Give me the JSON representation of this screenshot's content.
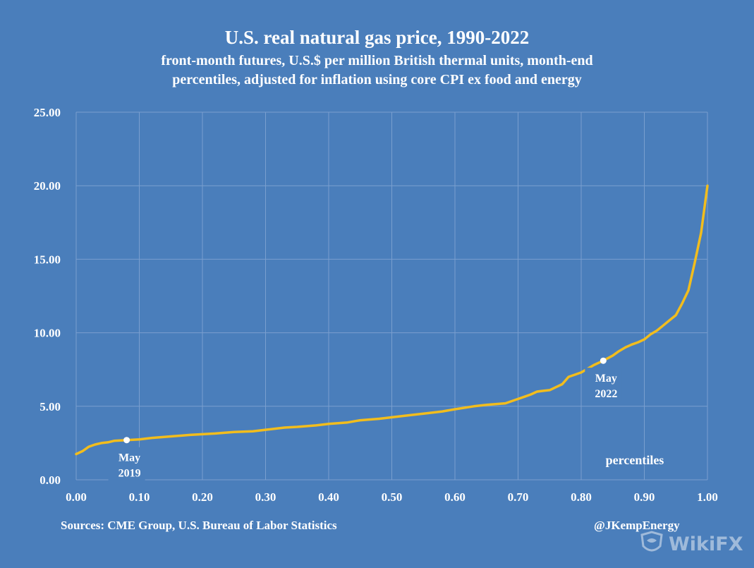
{
  "header": {
    "title": "U.S. real natural gas price, 1990-2022",
    "subtitle_line1": "front-month futures, U.S.$ per million British thermal units, month-end",
    "subtitle_line2": "percentiles, adjusted for inflation using core CPI ex food and energy"
  },
  "footer": {
    "source": "Sources: CME Group, U.S. Bureau of Labor Statistics",
    "handle": "@JKempEnergy"
  },
  "watermark": {
    "text": "WikiFX",
    "icon": "wikifx-logo-icon"
  },
  "colors": {
    "background": "#4a7ebb",
    "line": "#f2bd1d",
    "grid": "#7a9fcf",
    "text": "#ffffff"
  },
  "chart_data": {
    "type": "line",
    "title": "U.S. real natural gas price, 1990-2022",
    "xlabel": "percentiles",
    "ylabel": "",
    "xlim": [
      0,
      1
    ],
    "ylim": [
      0,
      25
    ],
    "xticks": [
      "0.00",
      "0.10",
      "0.20",
      "0.30",
      "0.40",
      "0.50",
      "0.60",
      "0.70",
      "0.80",
      "0.90",
      "1.00"
    ],
    "yticks": [
      "0.00",
      "5.00",
      "10.00",
      "15.00",
      "20.00",
      "25.00"
    ],
    "grid": true,
    "series": [
      {
        "x": [
          0.0,
          0.01,
          0.02,
          0.03,
          0.04,
          0.05,
          0.06,
          0.08,
          0.1,
          0.12,
          0.15,
          0.18,
          0.2,
          0.22,
          0.25,
          0.28,
          0.3,
          0.33,
          0.35,
          0.38,
          0.4,
          0.43,
          0.45,
          0.48,
          0.5,
          0.53,
          0.55,
          0.58,
          0.6,
          0.63,
          0.65,
          0.68,
          0.69,
          0.7,
          0.71,
          0.72,
          0.73,
          0.74,
          0.75,
          0.76,
          0.77,
          0.78,
          0.79,
          0.8,
          0.81,
          0.82,
          0.835,
          0.85,
          0.86,
          0.87,
          0.88,
          0.89,
          0.9,
          0.91,
          0.92,
          0.93,
          0.94,
          0.95,
          0.96,
          0.97,
          0.98,
          0.99,
          1.0
        ],
        "values": [
          1.75,
          1.95,
          2.25,
          2.4,
          2.5,
          2.55,
          2.65,
          2.7,
          2.75,
          2.85,
          2.95,
          3.05,
          3.1,
          3.15,
          3.25,
          3.3,
          3.4,
          3.55,
          3.6,
          3.7,
          3.8,
          3.9,
          4.05,
          4.15,
          4.25,
          4.4,
          4.5,
          4.65,
          4.8,
          5.0,
          5.1,
          5.2,
          5.35,
          5.5,
          5.65,
          5.8,
          6.0,
          6.05,
          6.1,
          6.3,
          6.5,
          7.0,
          7.15,
          7.3,
          7.55,
          7.8,
          8.1,
          8.45,
          8.75,
          9.0,
          9.2,
          9.35,
          9.55,
          9.9,
          10.15,
          10.5,
          10.85,
          11.2,
          12.0,
          12.9,
          14.8,
          16.8,
          20.0
        ]
      }
    ],
    "annotations": [
      {
        "x": 0.08,
        "y": 2.7,
        "label_line1": "May",
        "label_line2": "2019"
      },
      {
        "x": 0.835,
        "y": 8.1,
        "label_line1": "May",
        "label_line2": "2022"
      }
    ]
  }
}
